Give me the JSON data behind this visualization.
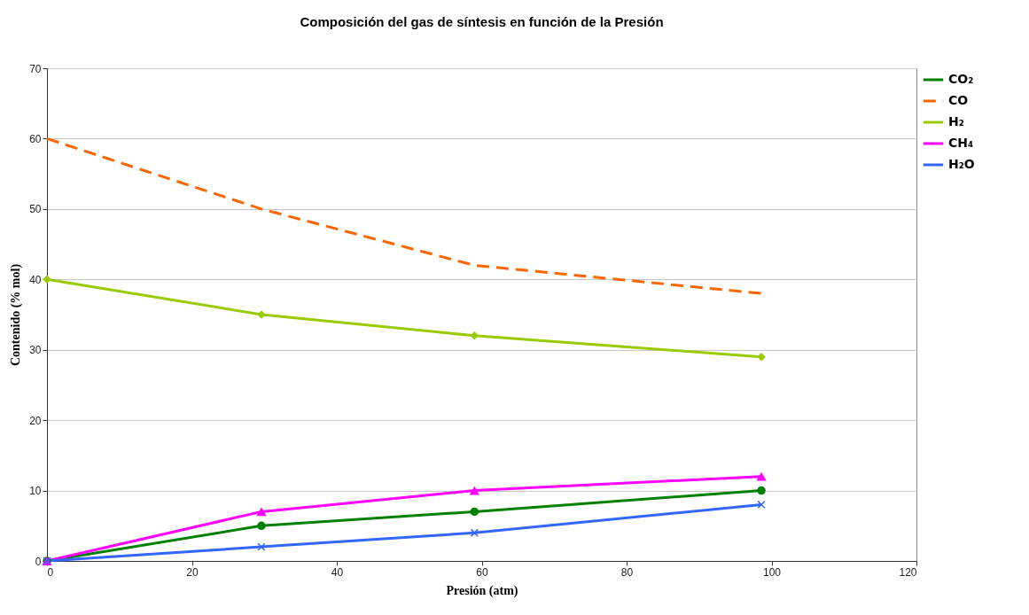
{
  "chart_data": {
    "type": "line",
    "title": "Composición del gas de síntesis en función de la Presión",
    "xlabel": "Presión (atm)",
    "ylabel": "Contenido (% mol)",
    "x": [
      0,
      29.6,
      59,
      98.6
    ],
    "series": [
      {
        "name": "CO₂",
        "color": "#008000",
        "marker": "circle",
        "line_style": "solid",
        "values": [
          0,
          5,
          7,
          10
        ]
      },
      {
        "name": "CO",
        "color": "#ff6600",
        "marker": "none",
        "line_style": "dashed",
        "values": [
          60,
          50,
          42,
          38
        ]
      },
      {
        "name": "H₂",
        "color": "#99cc00",
        "marker": "diamond",
        "line_style": "solid",
        "values": [
          40,
          35,
          32,
          29
        ]
      },
      {
        "name": "CH₄",
        "color": "#ff00ff",
        "marker": "triangle",
        "line_style": "solid",
        "values": [
          0,
          7,
          10,
          12
        ]
      },
      {
        "name": "H₂O",
        "color": "#3366ff",
        "marker": "cross",
        "line_style": "solid",
        "values": [
          0,
          2,
          4,
          8
        ]
      }
    ],
    "xlim": [
      0,
      120
    ],
    "xticks": [
      0,
      20,
      40,
      60,
      80,
      100,
      120
    ],
    "ylim": [
      0,
      70
    ],
    "yticks": [
      0,
      10,
      20,
      30,
      40,
      50,
      60,
      70
    ],
    "grid": "y",
    "legend": "right"
  }
}
